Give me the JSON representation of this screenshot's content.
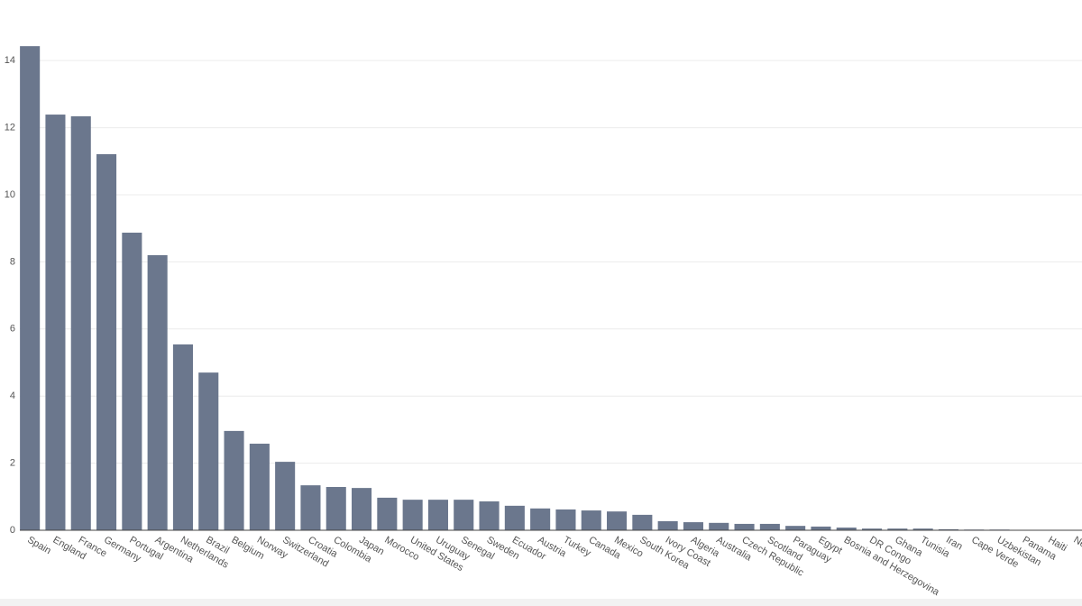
{
  "chart_data": {
    "type": "bar",
    "categories": [
      "Spain",
      "England",
      "France",
      "Germany",
      "Portugal",
      "Argentina",
      "Netherlands",
      "Brazil",
      "Belgium",
      "Norway",
      "Switzerland",
      "Croatia",
      "Colombia",
      "Japan",
      "Morocco",
      "United States",
      "Uruguay",
      "Senegal",
      "Sweden",
      "Ecuador",
      "Austria",
      "Turkey",
      "Canada",
      "Mexico",
      "South Korea",
      "Ivory Coast",
      "Algeria",
      "Australia",
      "Czech Republic",
      "Scotland",
      "Paraguay",
      "Egypt",
      "Bosnia and Herzegovina",
      "DR Congo",
      "Ghana",
      "Tunisia",
      "Iran",
      "Cape Verde",
      "Uzbekistan",
      "Panama",
      "Haiti",
      "New Zealand"
    ],
    "values": [
      14.43,
      12.39,
      12.34,
      11.21,
      8.87,
      8.2,
      5.54,
      4.7,
      2.96,
      2.58,
      2.04,
      1.34,
      1.29,
      1.26,
      0.97,
      0.91,
      0.91,
      0.91,
      0.86,
      0.73,
      0.65,
      0.62,
      0.59,
      0.56,
      0.46,
      0.27,
      0.24,
      0.22,
      0.19,
      0.19,
      0.13,
      0.11,
      0.08,
      0.05,
      0.05,
      0.05,
      0.03,
      0.02,
      0.02,
      0.01,
      0.01,
      0.01
    ],
    "color": "#6b778d",
    "ylim": [
      0,
      14.8
    ],
    "yticks": [
      0,
      2,
      4,
      6,
      8,
      10,
      12,
      14
    ],
    "grid": true
  }
}
